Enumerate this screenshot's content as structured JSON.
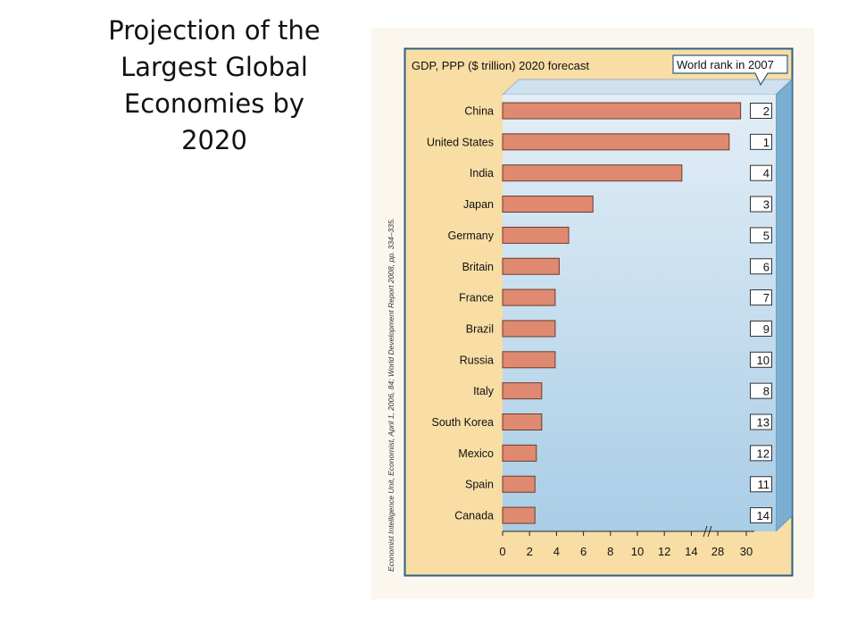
{
  "slide": {
    "title_lines": [
      "Projection of the",
      "Largest Global",
      "Economies by",
      "2020"
    ]
  },
  "chart_data": {
    "type": "bar",
    "orientation": "horizontal",
    "title": "GDP, PPP ($ trillion) 2020 forecast",
    "rank_header": "World rank in 2007",
    "source": "Economist Intelligence Unit, Economist, April 1, 2006, 84; World Development Report 2008, pp. 334–335.",
    "categories": [
      "China",
      "United States",
      "India",
      "Japan",
      "Germany",
      "Britain",
      "France",
      "Brazil",
      "Russia",
      "Italy",
      "South Korea",
      "Mexico",
      "Spain",
      "Canada"
    ],
    "values": [
      29.6,
      28.8,
      13.3,
      6.7,
      4.9,
      4.2,
      3.9,
      3.9,
      3.9,
      2.9,
      2.9,
      2.5,
      2.4,
      2.4
    ],
    "ranks_2007": [
      "2",
      "1",
      "4",
      "3",
      "5",
      "6",
      "7",
      "9",
      "10",
      "8",
      "13",
      "12",
      "11",
      "14"
    ],
    "x_ticks": [
      "0",
      "2",
      "4",
      "6",
      "8",
      "10",
      "12",
      "14",
      "28",
      "30"
    ],
    "axis_break": "between 14 and 28",
    "colors": {
      "bar": "#df8a70",
      "bar_stroke": "#6b3b2a",
      "panel_top": "#e3eef7",
      "panel_bottom": "#a9cde6",
      "frame": "#2c5f86",
      "outer": "#f8dda4"
    }
  }
}
